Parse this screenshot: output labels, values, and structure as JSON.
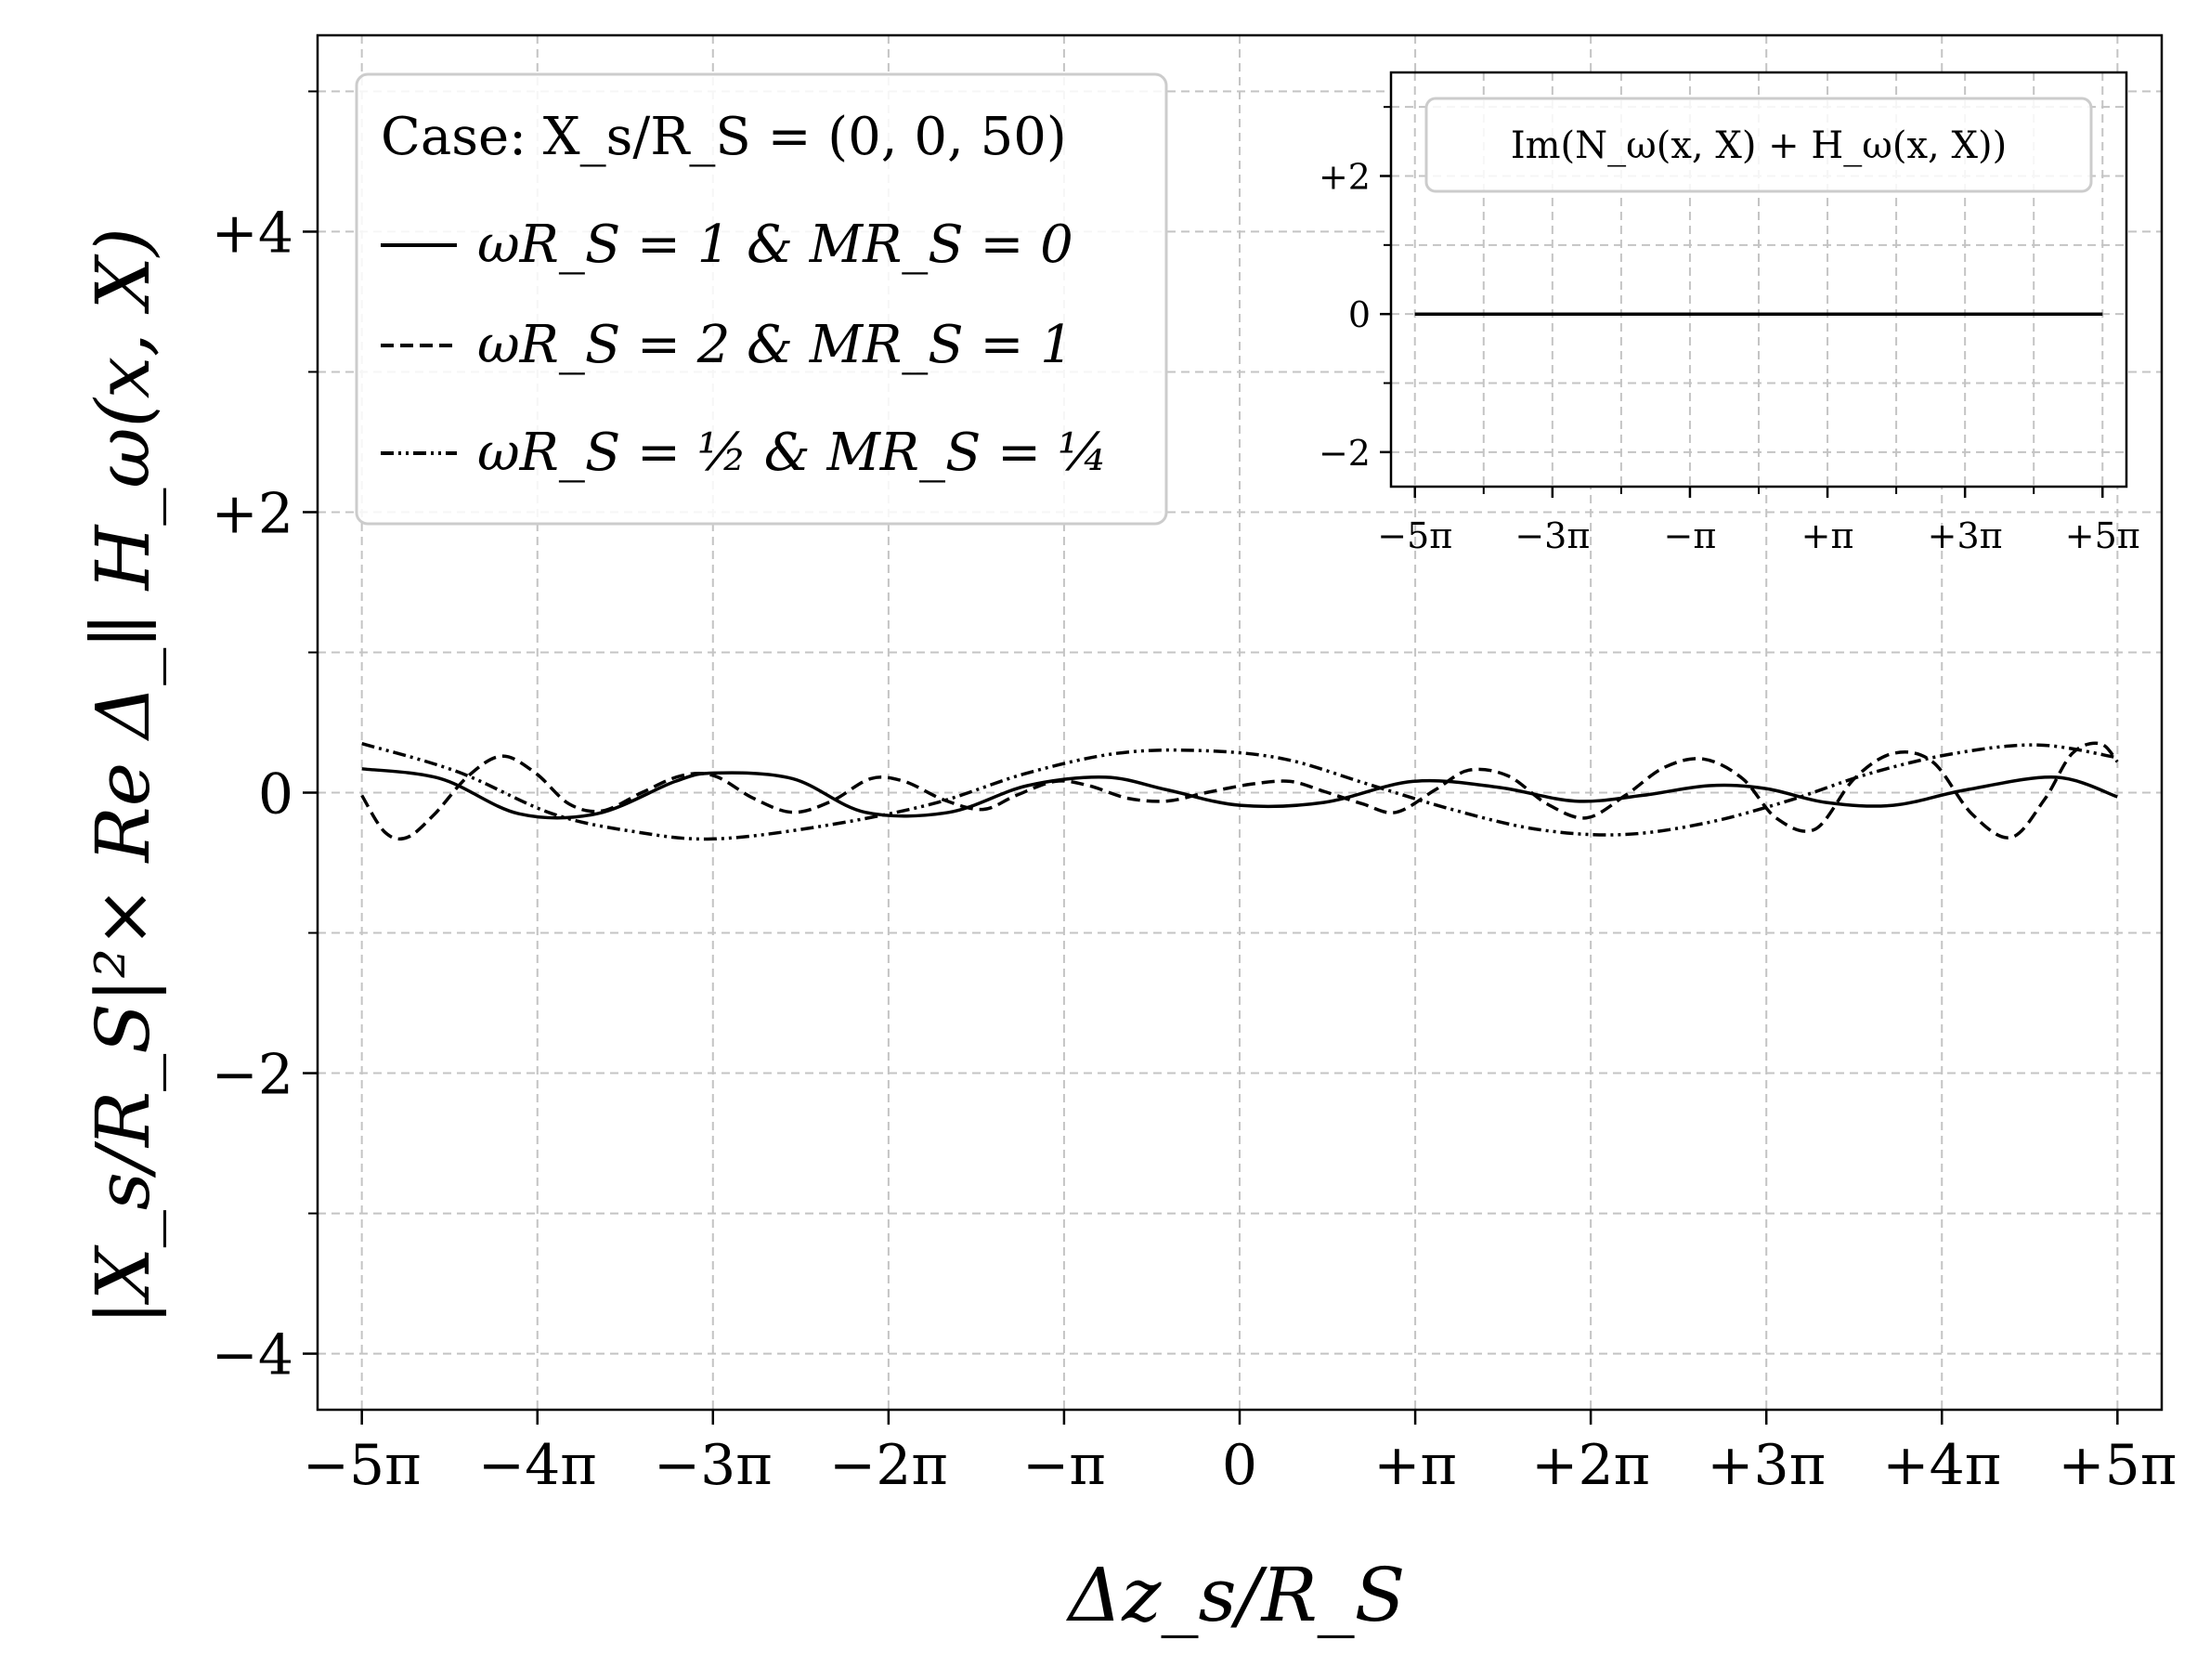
{
  "chart_data": [
    {
      "type": "line",
      "xlabel": "Δz_s/R_S",
      "ylabel": "|X_s/R_S|²× Re Δ_∥ H_ω(x, X)",
      "xlim": [
        -16.5,
        16.5
      ],
      "ylim": [
        -4.4,
        5.4
      ],
      "x_ticks": [
        {
          "value": -15.708,
          "label": "−5π"
        },
        {
          "value": -12.566,
          "label": "−4π"
        },
        {
          "value": -9.425,
          "label": "−3π"
        },
        {
          "value": -6.283,
          "label": "−2π"
        },
        {
          "value": -3.142,
          "label": "−π"
        },
        {
          "value": 0,
          "label": "0"
        },
        {
          "value": 3.142,
          "label": "+π"
        },
        {
          "value": 6.283,
          "label": "+2π"
        },
        {
          "value": 9.425,
          "label": "+3π"
        },
        {
          "value": 12.566,
          "label": "+4π"
        },
        {
          "value": 15.708,
          "label": "+5π"
        }
      ],
      "y_ticks": [
        {
          "value": 4,
          "label": "+4"
        },
        {
          "value": 2,
          "label": "+2"
        },
        {
          "value": 0,
          "label": "0"
        },
        {
          "value": -2,
          "label": "−2"
        },
        {
          "value": -4,
          "label": "−4"
        }
      ],
      "y_minor_ticks": [
        5,
        3,
        1,
        -1,
        -3
      ],
      "grid": true,
      "legend": {
        "placement": "top-left",
        "title": "Case: X_s/R_S = (0, 0, 50)",
        "entries": [
          {
            "label": "ωR_S = 1 & MR_S = 0",
            "dash": "solid"
          },
          {
            "label": "ωR_S = 2 & MR_S = 1",
            "dash": "dashed"
          },
          {
            "label": "ωR_S = ½ & MR_S = ¼",
            "dash": "dashdotdot"
          }
        ]
      },
      "series": [
        {
          "name": "ωR_S = 1 & MR_S = 0",
          "dash": "solid",
          "color": "#000000",
          "x": [
            -15.708,
            -14.3,
            -12.9,
            -11.5,
            -10.1,
            -9.4,
            -8.0,
            -6.7,
            -5.2,
            -3.8,
            -2.4,
            -1.3,
            0,
            1.5,
            3.1,
            4.6,
            6.0,
            7.2,
            8.4,
            9.4,
            10.5,
            11.7,
            13.0,
            14.6,
            15.708
          ],
          "y": [
            0.17,
            0.1,
            -0.15,
            -0.15,
            0.08,
            0.14,
            0.1,
            -0.14,
            -0.14,
            0.05,
            0.11,
            0.02,
            -0.09,
            -0.07,
            0.08,
            0.04,
            -0.06,
            -0.02,
            0.05,
            0.03,
            -0.07,
            -0.09,
            0.02,
            0.11,
            -0.03
          ]
        },
        {
          "name": "ωR_S = 2 & MR_S = 1",
          "dash": "dashed",
          "color": "#000000",
          "x": [
            -15.708,
            -15.3,
            -14.9,
            -14.4,
            -13.8,
            -13.2,
            -12.6,
            -12.0,
            -11.4,
            -10.7,
            -10.0,
            -9.4,
            -8.7,
            -8.0,
            -7.3,
            -6.6,
            -6.0,
            -5.3,
            -4.6,
            -4.0,
            -3.3,
            -2.7,
            -2.0,
            -1.3,
            -0.6,
            0.2,
            0.9,
            1.5,
            2.2,
            2.8,
            3.5,
            4.1,
            4.8,
            5.5,
            6.2,
            6.9,
            7.6,
            8.3,
            9.0,
            9.6,
            10.3,
            11.0,
            11.7,
            12.4,
            13.1,
            13.8,
            14.4,
            14.9,
            15.4,
            15.708
          ],
          "y": [
            -0.02,
            -0.28,
            -0.32,
            -0.15,
            0.12,
            0.26,
            0.14,
            -0.08,
            -0.13,
            0.0,
            0.12,
            0.12,
            -0.04,
            -0.14,
            -0.06,
            0.1,
            0.08,
            -0.05,
            -0.12,
            -0.02,
            0.08,
            0.05,
            -0.04,
            -0.06,
            0.0,
            0.06,
            0.08,
            0.01,
            -0.08,
            -0.14,
            0.02,
            0.16,
            0.12,
            -0.08,
            -0.18,
            -0.02,
            0.18,
            0.24,
            0.1,
            -0.18,
            -0.26,
            0.1,
            0.28,
            0.22,
            -0.15,
            -0.32,
            -0.05,
            0.28,
            0.35,
            0.22
          ]
        },
        {
          "name": "ωR_S = ½ & MR_S = ¼",
          "dash": "dashdotdot",
          "color": "#000000",
          "x": [
            -15.708,
            -14.0,
            -12.3,
            -10.8,
            -9.4,
            -7.5,
            -5.5,
            -3.8,
            -2.2,
            -0.7,
            0.8,
            2.3,
            3.8,
            5.3,
            6.8,
            8.3,
            9.8,
            11.3,
            12.8,
            14.3,
            15.708
          ],
          "y": [
            0.35,
            0.15,
            -0.15,
            -0.28,
            -0.33,
            -0.24,
            -0.08,
            0.14,
            0.28,
            0.3,
            0.24,
            0.06,
            -0.12,
            -0.26,
            -0.3,
            -0.22,
            -0.06,
            0.14,
            0.28,
            0.34,
            0.25
          ]
        }
      ]
    },
    {
      "type": "line",
      "xlim": [
        -16.8,
        16.8
      ],
      "ylim": [
        -2.5,
        3.5
      ],
      "x_ticks": [
        {
          "value": -15.708,
          "label": "−5π"
        },
        {
          "value": -9.425,
          "label": "−3π"
        },
        {
          "value": -3.142,
          "label": "−π"
        },
        {
          "value": 3.142,
          "label": "+π"
        },
        {
          "value": 9.425,
          "label": "+3π"
        },
        {
          "value": 15.708,
          "label": "+5π"
        }
      ],
      "x_minor_ticks": [
        -12.566,
        -6.283,
        0,
        6.283,
        12.566
      ],
      "y_ticks": [
        {
          "value": 2,
          "label": "+2"
        },
        {
          "value": 0,
          "label": "0"
        },
        {
          "value": -2,
          "label": "−2"
        }
      ],
      "y_minor_ticks": [
        3,
        1,
        -1
      ],
      "grid": true,
      "legend": {
        "placement": "top",
        "entries": [
          {
            "label": "Im(N_ω(x, X) + H_ω(x, X))"
          }
        ]
      },
      "series": [
        {
          "dash": "solid",
          "color": "#000000",
          "x": [
            -15.708,
            15.708
          ],
          "y": [
            0,
            0
          ]
        }
      ]
    }
  ]
}
